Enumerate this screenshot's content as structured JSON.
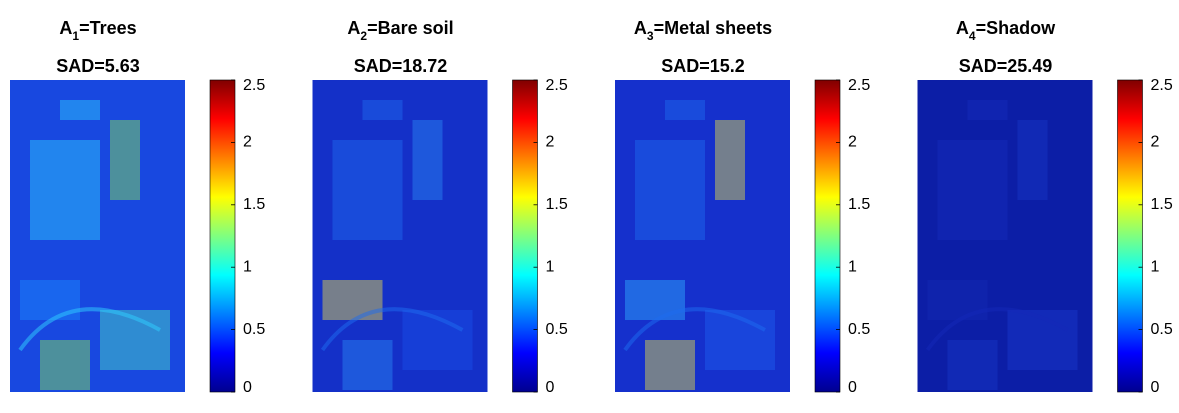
{
  "chart_data": [
    {
      "type": "heatmap",
      "title": {
        "symbol": "A",
        "subscript": "1",
        "name": "=Trees"
      },
      "subtitle": "SAD=5.63",
      "colormap": "jet",
      "clim": [
        0,
        2.5
      ],
      "cticks": [
        0,
        0.5,
        1,
        1.5,
        2,
        2.5
      ]
    },
    {
      "type": "heatmap",
      "title": {
        "symbol": "A",
        "subscript": "2",
        "name": "=Bare soil"
      },
      "subtitle": "SAD=18.72",
      "colormap": "jet",
      "clim": [
        0,
        2.5
      ],
      "cticks": [
        0,
        0.5,
        1,
        1.5,
        2,
        2.5
      ]
    },
    {
      "type": "heatmap",
      "title": {
        "symbol": "A",
        "subscript": "3",
        "name": "=Metal sheets"
      },
      "subtitle": "SAD=15.2",
      "colormap": "jet",
      "clim": [
        0,
        2.5
      ],
      "cticks": [
        0,
        0.5,
        1,
        1.5,
        2,
        2.5
      ]
    },
    {
      "type": "heatmap",
      "title": {
        "symbol": "A",
        "subscript": "4",
        "name": "=Shadow"
      },
      "subtitle": "SAD=25.49",
      "colormap": "jet",
      "clim": [
        0,
        2.5
      ],
      "cticks": [
        0,
        0.5,
        1,
        1.5,
        2,
        2.5
      ]
    }
  ]
}
